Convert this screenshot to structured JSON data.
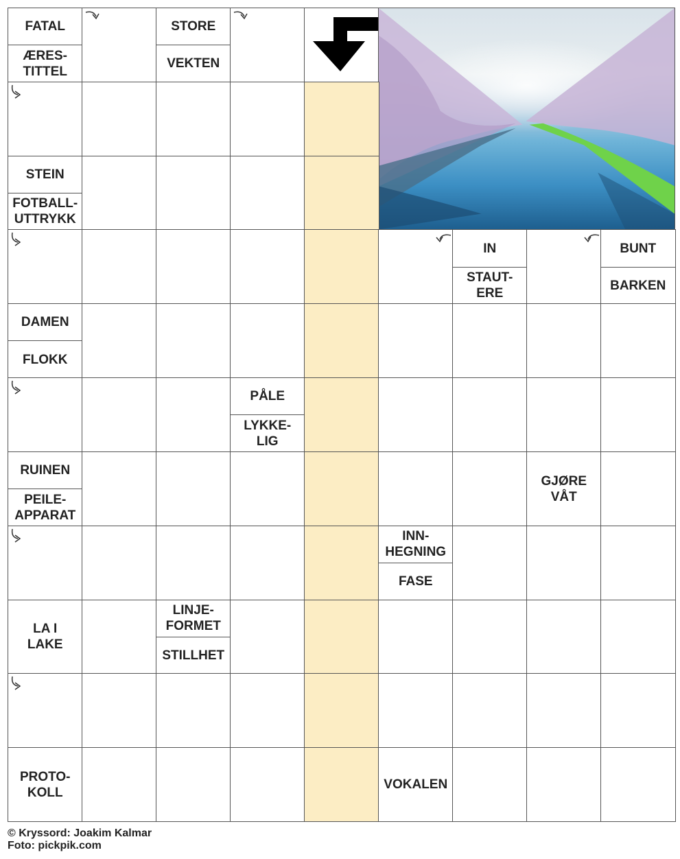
{
  "puzzle": {
    "highlight_color": "#fcedc4",
    "grid": [
      [
        {
          "t": "clue",
          "parts": [
            "FATAL",
            "ÆRES-\nTITTEL"
          ]
        },
        {
          "t": "arrow",
          "dir": "right-then-down"
        },
        {
          "t": "clue",
          "parts": [
            "STORE",
            "VEKTEN"
          ]
        },
        {
          "t": "arrow",
          "dir": "right-then-down"
        },
        {
          "t": "solution-arrow"
        },
        {
          "t": "image"
        },
        {
          "t": "image"
        },
        {
          "t": "image"
        },
        {
          "t": "image"
        }
      ],
      [
        {
          "t": "arrow",
          "dir": "down-then-right"
        },
        {
          "t": "empty"
        },
        {
          "t": "empty"
        },
        {
          "t": "empty"
        },
        {
          "t": "hl"
        },
        {
          "t": "image"
        },
        {
          "t": "image"
        },
        {
          "t": "image"
        },
        {
          "t": "image"
        }
      ],
      [
        {
          "t": "clue",
          "parts": [
            "STEIN",
            "FOTBALL-\nUTTRYKK"
          ]
        },
        {
          "t": "empty"
        },
        {
          "t": "empty"
        },
        {
          "t": "empty"
        },
        {
          "t": "hl"
        },
        {
          "t": "image"
        },
        {
          "t": "image"
        },
        {
          "t": "image"
        },
        {
          "t": "image"
        }
      ],
      [
        {
          "t": "arrow",
          "dir": "down-then-right"
        },
        {
          "t": "empty"
        },
        {
          "t": "empty"
        },
        {
          "t": "empty"
        },
        {
          "t": "hl"
        },
        {
          "t": "arrow",
          "dir": "left-then-down"
        },
        {
          "t": "clue",
          "parts": [
            "IN",
            "STAUT-\nERE"
          ]
        },
        {
          "t": "arrow",
          "dir": "left-then-down"
        },
        {
          "t": "clue",
          "parts": [
            "BUNT",
            "BARKEN"
          ]
        }
      ],
      [
        {
          "t": "clue",
          "parts": [
            "DAMEN",
            "FLOKK"
          ]
        },
        {
          "t": "empty"
        },
        {
          "t": "empty"
        },
        {
          "t": "empty"
        },
        {
          "t": "hl"
        },
        {
          "t": "empty"
        },
        {
          "t": "empty"
        },
        {
          "t": "empty"
        },
        {
          "t": "empty"
        }
      ],
      [
        {
          "t": "arrow",
          "dir": "down-then-right"
        },
        {
          "t": "empty"
        },
        {
          "t": "empty"
        },
        {
          "t": "clue",
          "parts": [
            "PÅLE",
            "LYKKE-\nLIG"
          ]
        },
        {
          "t": "hl"
        },
        {
          "t": "empty"
        },
        {
          "t": "empty"
        },
        {
          "t": "empty"
        },
        {
          "t": "empty"
        }
      ],
      [
        {
          "t": "clue",
          "parts": [
            "RUINEN",
            "PEILE-\nAPPARAT"
          ]
        },
        {
          "t": "empty"
        },
        {
          "t": "empty"
        },
        {
          "t": "empty"
        },
        {
          "t": "hl"
        },
        {
          "t": "empty"
        },
        {
          "t": "empty"
        },
        {
          "t": "clue",
          "parts": [
            "GJØRE\nVÅT"
          ]
        },
        {
          "t": "empty"
        }
      ],
      [
        {
          "t": "arrow",
          "dir": "down-then-right"
        },
        {
          "t": "empty"
        },
        {
          "t": "empty"
        },
        {
          "t": "empty"
        },
        {
          "t": "hl"
        },
        {
          "t": "clue",
          "parts": [
            "INN-\nHEGNING",
            "FASE"
          ]
        },
        {
          "t": "empty"
        },
        {
          "t": "empty"
        },
        {
          "t": "empty"
        }
      ],
      [
        {
          "t": "clue",
          "parts": [
            "LA I\nLAKE"
          ]
        },
        {
          "t": "empty"
        },
        {
          "t": "clue",
          "parts": [
            "LINJE-\nFORMET",
            "STILLHET"
          ]
        },
        {
          "t": "empty"
        },
        {
          "t": "hl"
        },
        {
          "t": "empty"
        },
        {
          "t": "empty"
        },
        {
          "t": "empty"
        },
        {
          "t": "empty"
        }
      ],
      [
        {
          "t": "arrow",
          "dir": "down-then-right"
        },
        {
          "t": "empty"
        },
        {
          "t": "empty"
        },
        {
          "t": "empty"
        },
        {
          "t": "hl"
        },
        {
          "t": "empty"
        },
        {
          "t": "empty"
        },
        {
          "t": "empty"
        },
        {
          "t": "empty"
        }
      ],
      [
        {
          "t": "clue",
          "parts": [
            "PROTO-\nKOLL"
          ]
        },
        {
          "t": "empty"
        },
        {
          "t": "empty"
        },
        {
          "t": "empty"
        },
        {
          "t": "hl"
        },
        {
          "t": "clue",
          "parts": [
            "VOKALEN"
          ]
        },
        {
          "t": "empty"
        },
        {
          "t": "empty"
        },
        {
          "t": "empty"
        }
      ]
    ]
  },
  "footer": {
    "credit": "© Kryssord: Joakim Kalmar",
    "photo": "Foto: pickpik.com"
  }
}
